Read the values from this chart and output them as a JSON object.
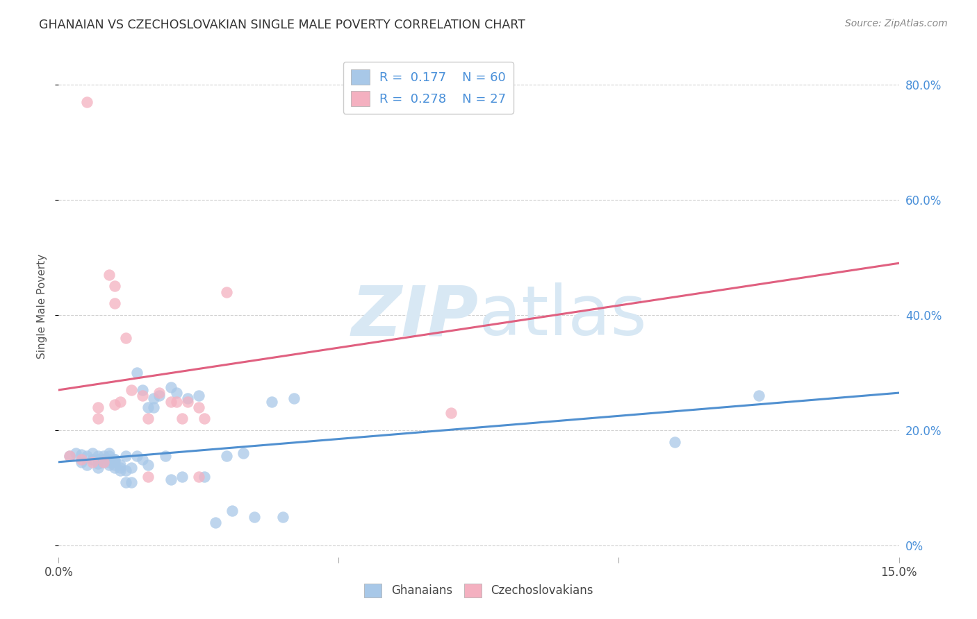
{
  "title": "GHANAIAN VS CZECHOSLOVAKIAN SINGLE MALE POVERTY CORRELATION CHART",
  "source": "Source: ZipAtlas.com",
  "ylabel": "Single Male Poverty",
  "legend_label1": "Ghanaians",
  "legend_label2": "Czechoslovakians",
  "R1": "0.177",
  "N1": "60",
  "R2": "0.278",
  "N2": "27",
  "color_blue": "#a8c8e8",
  "color_pink": "#f4b0c0",
  "color_blue_line": "#5090d0",
  "color_pink_line": "#e06080",
  "color_blue_text": "#4a90d9",
  "color_dark": "#222222",
  "watermark_color": "#d8e8f4",
  "blue_x": [
    0.002,
    0.003,
    0.004,
    0.004,
    0.005,
    0.005,
    0.006,
    0.006,
    0.007,
    0.007,
    0.007,
    0.007,
    0.008,
    0.008,
    0.008,
    0.009,
    0.009,
    0.009,
    0.009,
    0.009,
    0.01,
    0.01,
    0.01,
    0.01,
    0.01,
    0.011,
    0.011,
    0.011,
    0.012,
    0.012,
    0.012,
    0.013,
    0.013,
    0.014,
    0.014,
    0.015,
    0.015,
    0.016,
    0.016,
    0.017,
    0.017,
    0.018,
    0.019,
    0.02,
    0.02,
    0.021,
    0.022,
    0.023,
    0.025,
    0.026,
    0.028,
    0.03,
    0.031,
    0.033,
    0.035,
    0.038,
    0.04,
    0.042,
    0.11,
    0.125
  ],
  "blue_y": [
    0.155,
    0.16,
    0.145,
    0.158,
    0.14,
    0.155,
    0.15,
    0.16,
    0.135,
    0.142,
    0.15,
    0.155,
    0.145,
    0.15,
    0.155,
    0.14,
    0.145,
    0.15,
    0.155,
    0.16,
    0.15,
    0.135,
    0.145,
    0.14,
    0.15,
    0.13,
    0.135,
    0.14,
    0.155,
    0.11,
    0.13,
    0.11,
    0.135,
    0.155,
    0.3,
    0.27,
    0.15,
    0.24,
    0.14,
    0.24,
    0.255,
    0.26,
    0.155,
    0.115,
    0.275,
    0.265,
    0.12,
    0.255,
    0.26,
    0.12,
    0.04,
    0.155,
    0.06,
    0.16,
    0.05,
    0.25,
    0.05,
    0.255,
    0.18,
    0.26
  ],
  "pink_x": [
    0.002,
    0.004,
    0.005,
    0.006,
    0.007,
    0.007,
    0.008,
    0.009,
    0.01,
    0.01,
    0.01,
    0.011,
    0.012,
    0.013,
    0.015,
    0.016,
    0.016,
    0.018,
    0.02,
    0.021,
    0.022,
    0.023,
    0.025,
    0.025,
    0.026,
    0.03,
    0.07
  ],
  "pink_y": [
    0.155,
    0.15,
    0.77,
    0.145,
    0.22,
    0.24,
    0.145,
    0.47,
    0.42,
    0.45,
    0.245,
    0.25,
    0.36,
    0.27,
    0.26,
    0.22,
    0.12,
    0.265,
    0.25,
    0.25,
    0.22,
    0.25,
    0.24,
    0.12,
    0.22,
    0.44,
    0.23
  ],
  "xlim": [
    0.0,
    0.15
  ],
  "ylim": [
    -0.02,
    0.85
  ],
  "yticks": [
    0.0,
    0.2,
    0.4,
    0.6,
    0.8
  ],
  "ytick_labels": [
    "0%",
    "20.0%",
    "40.0%",
    "60.0%",
    "80.0%"
  ],
  "blue_line_x": [
    0.0,
    0.15
  ],
  "blue_line_y": [
    0.145,
    0.265
  ],
  "pink_line_x": [
    0.0,
    0.15
  ],
  "pink_line_y": [
    0.27,
    0.49
  ],
  "background_color": "#ffffff",
  "grid_color": "#cccccc"
}
